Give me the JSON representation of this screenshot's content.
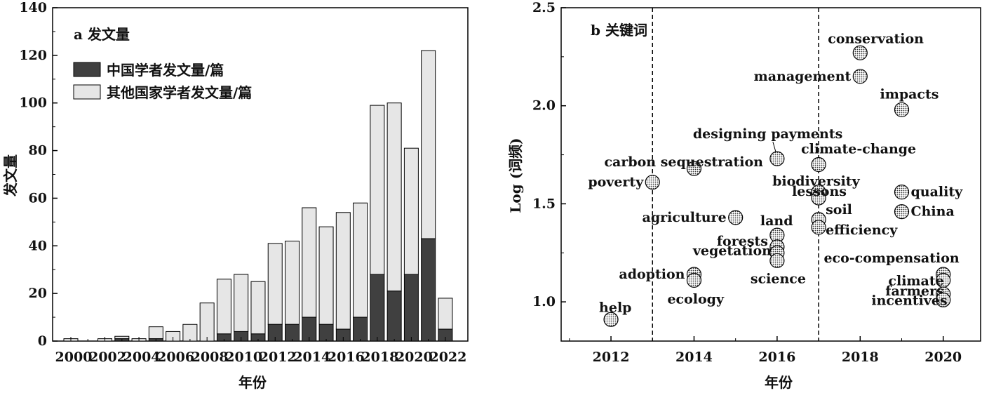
{
  "chart_data": [
    {
      "type": "bar",
      "stacked": true,
      "title": "a 发文量",
      "xlabel": "年份",
      "ylabel": "发文量",
      "ylim": [
        0,
        140
      ],
      "yticks": [
        "0",
        "20",
        "40",
        "60",
        "80",
        "100",
        "120",
        "140"
      ],
      "xticks": [
        "2000",
        "2002",
        "2004",
        "2006",
        "2008",
        "2010",
        "2012",
        "2014",
        "2016",
        "2018",
        "2020",
        "2022"
      ],
      "categories": [
        "2000",
        "2001",
        "2002",
        "2003",
        "2004",
        "2005",
        "2006",
        "2007",
        "2008",
        "2009",
        "2010",
        "2011",
        "2012",
        "2013",
        "2014",
        "2015",
        "2016",
        "2017",
        "2018",
        "2019",
        "2020",
        "2021",
        "2022"
      ],
      "series": [
        {
          "name": "中国学者发文量/篇",
          "color": "#404040",
          "values": [
            0,
            0,
            0,
            1,
            0,
            1,
            0,
            0,
            0,
            3,
            4,
            3,
            7,
            7,
            10,
            7,
            5,
            10,
            28,
            21,
            28,
            43,
            5
          ]
        },
        {
          "name": "其他国家学者发文量/篇",
          "color": "#e6e6e6",
          "values": [
            1,
            0,
            1,
            1,
            1,
            5,
            4,
            7,
            16,
            23,
            24,
            22,
            34,
            35,
            46,
            41,
            49,
            48,
            71,
            79,
            53,
            79,
            13
          ]
        }
      ],
      "legend": "top-left"
    },
    {
      "type": "scatter",
      "title": "b 关键词",
      "xlabel": "年份",
      "ylabel": "Log (词频)",
      "xlim": [
        2010.8,
        2020.9
      ],
      "ylim": [
        0.8,
        2.5
      ],
      "xticks": [
        "2012",
        "2014",
        "2016",
        "2018",
        "2020"
      ],
      "yticks": [
        "1.0",
        "1.5",
        "2.0",
        "2.5"
      ],
      "reference_lines_x": [
        2013,
        2017
      ],
      "points": [
        {
          "label": "help",
          "x": 2012,
          "y": 0.91
        },
        {
          "label": "poverty",
          "x": 2013,
          "y": 1.61
        },
        {
          "label": "carbon sequestration",
          "x": 2014,
          "y": 1.68
        },
        {
          "label": "adoption",
          "x": 2014,
          "y": 1.14
        },
        {
          "label": "ecology",
          "x": 2014,
          "y": 1.11
        },
        {
          "label": "agriculture",
          "x": 2015,
          "y": 1.43
        },
        {
          "label": "designing payments",
          "x": 2016,
          "y": 1.73
        },
        {
          "label": "land",
          "x": 2016,
          "y": 1.34
        },
        {
          "label": "forests",
          "x": 2016,
          "y": 1.28
        },
        {
          "label": "vegetation",
          "x": 2016,
          "y": 1.25
        },
        {
          "label": "science",
          "x": 2016,
          "y": 1.21
        },
        {
          "label": "climate-change",
          "x": 2017,
          "y": 1.7
        },
        {
          "label": "biodiversity",
          "x": 2017,
          "y": 1.56
        },
        {
          "label": "lessons",
          "x": 2017,
          "y": 1.53
        },
        {
          "label": "soil",
          "x": 2017,
          "y": 1.42
        },
        {
          "label": "efficiency",
          "x": 2017,
          "y": 1.38
        },
        {
          "label": "conservation",
          "x": 2018,
          "y": 2.27
        },
        {
          "label": "management",
          "x": 2018,
          "y": 2.15
        },
        {
          "label": "impacts",
          "x": 2019,
          "y": 1.98
        },
        {
          "label": "quality",
          "x": 2019,
          "y": 1.56
        },
        {
          "label": "China",
          "x": 2019,
          "y": 1.46
        },
        {
          "label": "eco-compensation",
          "x": 2020,
          "y": 1.14
        },
        {
          "label": "climate",
          "x": 2020,
          "y": 1.11
        },
        {
          "label": "farmers",
          "x": 2020,
          "y": 1.04
        },
        {
          "label": "incentives",
          "x": 2020,
          "y": 1.01
        }
      ]
    }
  ]
}
